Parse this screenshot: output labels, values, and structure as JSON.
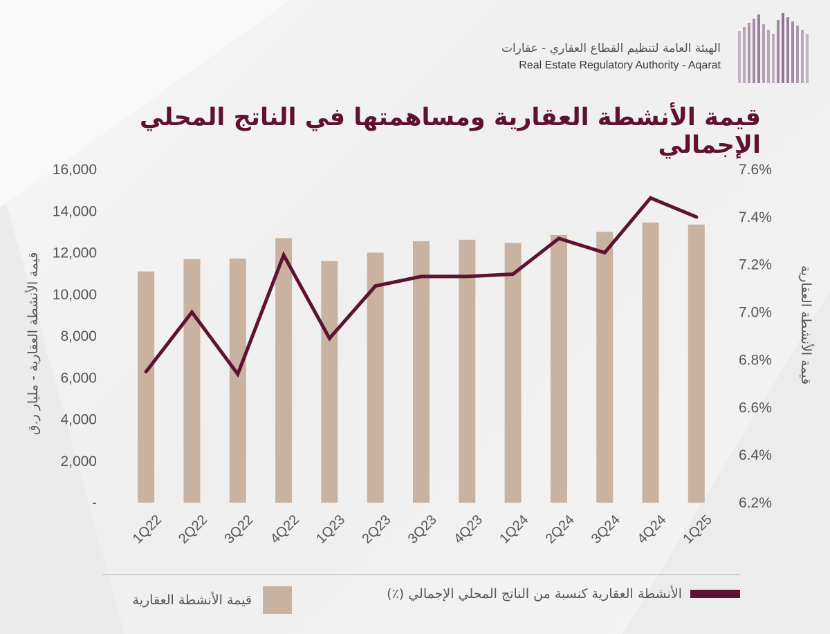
{
  "header": {
    "org_name_ar": "الهيئة العامة لتنظيم القطاع العقاري - عقارات",
    "org_name_en": "Real Estate Regulatory Authority - Aqarat",
    "logo_icon": "building-columns-logo-icon"
  },
  "colors": {
    "title": "#5e1131",
    "bar": "#c9b29f",
    "line": "#5e1131",
    "text": "#555555"
  },
  "chart_data": {
    "type": "bar",
    "title": "قيمة الأنشطة العقارية ومساهمتها في الناتج المحلي الإجمالي",
    "categories": [
      "1Q22",
      "2Q22",
      "3Q22",
      "4Q22",
      "1Q23",
      "2Q23",
      "3Q23",
      "4Q23",
      "1Q24",
      "2Q24",
      "3Q24",
      "4Q24",
      "1Q25"
    ],
    "series": [
      {
        "name": "قيمة الأنشطة العقارية",
        "type": "bar",
        "axis": "left",
        "values": [
          11100,
          11700,
          11720,
          12700,
          11600,
          12000,
          12550,
          12620,
          12470,
          12850,
          13000,
          13450,
          13350
        ]
      },
      {
        "name": "الأنشطة العقارية كنسبة من الناتج المحلي الإجمالي (٪)",
        "type": "line",
        "axis": "right",
        "values": [
          6.75,
          7.0,
          6.74,
          7.24,
          6.89,
          7.11,
          7.15,
          7.15,
          7.16,
          7.31,
          7.25,
          7.48,
          7.4
        ]
      }
    ],
    "left_axis": {
      "label": "قيمة الأنشطة العقارية - مليار ر.ق",
      "ylim": [
        0,
        16000
      ],
      "ticks": [
        "-",
        "2,000",
        "4,000",
        "6,000",
        "8,000",
        "10,000",
        "12,000",
        "14,000",
        "16,000"
      ]
    },
    "right_axis": {
      "label": "قيمة الأنشطة العقارية",
      "ylim": [
        6.2,
        7.6
      ],
      "ticks": [
        "6.2%",
        "6.4%",
        "6.6%",
        "6.8%",
        "7.0%",
        "7.2%",
        "7.4%",
        "7.6%"
      ]
    },
    "grid": false,
    "legend_position": "bottom"
  },
  "legend": {
    "bar_label": "قيمة الأنشطة العقارية",
    "line_label": "الأنشطة العقارية كنسبة من الناتج المحلي الإجمالي (٪)"
  }
}
